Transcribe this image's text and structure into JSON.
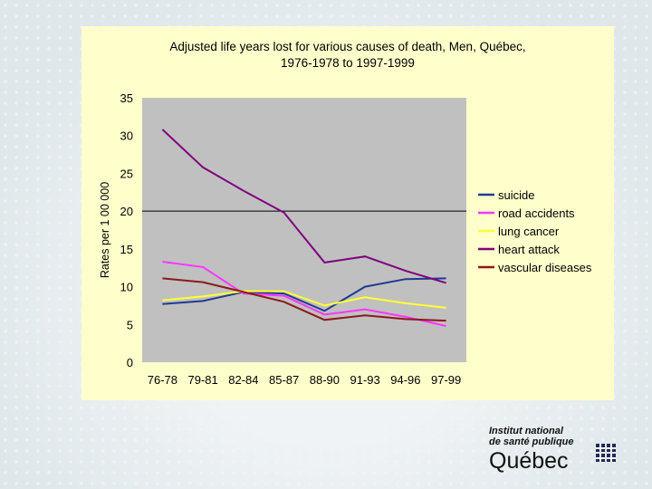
{
  "chart_data": {
    "type": "line",
    "title": "Adjusted life years lost for various causes of death, Men, Québec,",
    "subtitle": "1976-1978 to 1997-1999",
    "ylabel": "Rates per 1 00 000",
    "xlabel": "",
    "categories": [
      "76-78",
      "79-81",
      "82-84",
      "85-87",
      "88-90",
      "91-93",
      "94-96",
      "97-99"
    ],
    "ylim": [
      0,
      35
    ],
    "yticks": [
      0,
      5,
      10,
      15,
      20,
      25,
      30,
      35
    ],
    "grid": "horizontal line at 20",
    "legend_position": "right",
    "series": [
      {
        "name": "suicide",
        "color": "#1f3a93",
        "values": [
          7.7,
          8.1,
          9.3,
          9.1,
          6.8,
          10.0,
          11.0,
          11.1
        ]
      },
      {
        "name": "road accidents",
        "color": "#ff33ff",
        "values": [
          13.3,
          12.6,
          9.1,
          8.8,
          6.3,
          7.0,
          6.0,
          4.8
        ]
      },
      {
        "name": "lung cancer",
        "color": "#ffff33",
        "values": [
          8.2,
          8.7,
          9.4,
          9.4,
          7.5,
          8.6,
          7.8,
          7.2
        ]
      },
      {
        "name": "heart attack",
        "color": "#800080",
        "values": [
          30.8,
          25.8,
          22.7,
          19.8,
          13.2,
          14.0,
          12.1,
          10.5
        ]
      },
      {
        "name": "vascular diseases",
        "color": "#8b1a1a",
        "values": [
          11.1,
          10.6,
          9.3,
          8.0,
          5.6,
          6.2,
          5.7,
          5.5
        ]
      }
    ]
  },
  "logo": {
    "line1": "Institut national",
    "line2": "de santé publique",
    "line3": "Québec"
  }
}
